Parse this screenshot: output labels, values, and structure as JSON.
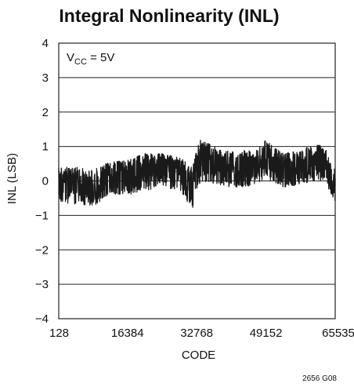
{
  "chart_data": {
    "type": "line",
    "title": "Integral Nonlinearity (INL)",
    "xlabel": "CODE",
    "ylabel": "INL (LSB)",
    "xlim": [
      128,
      65535
    ],
    "ylim": [
      -4,
      4
    ],
    "xticks": [
      "128",
      "16384",
      "32768",
      "49152",
      "65535"
    ],
    "xtick_values": [
      128,
      16384,
      32768,
      49152,
      65535
    ],
    "yticks": [
      "4",
      "3",
      "2",
      "1",
      "0",
      "−1",
      "−2",
      "−3",
      "−4"
    ],
    "ytick_values": [
      4,
      3,
      2,
      1,
      0,
      -1,
      -2,
      -3,
      -4
    ],
    "grid": "horizontal",
    "annotation": {
      "main": "V",
      "sub": "CC",
      "rest": " = 5V"
    },
    "figure_id": "2656 G08",
    "series": [
      {
        "x": [
          128,
          4096,
          8192,
          12288,
          16384,
          20480,
          24576,
          28672,
          31744,
          32768,
          33792,
          36864,
          40960,
          45056,
          48128,
          49152,
          50176,
          53248,
          57344,
          61440,
          63488,
          65535
        ],
        "center": [
          0.0,
          -0.1,
          -0.2,
          0.1,
          0.2,
          0.3,
          0.4,
          0.3,
          -0.1,
          0.3,
          0.7,
          0.5,
          0.3,
          0.4,
          0.5,
          0.8,
          0.6,
          0.2,
          0.5,
          0.6,
          0.5,
          -0.1
        ],
        "low": [
          -0.6,
          -0.7,
          -0.75,
          -0.4,
          -0.4,
          -0.3,
          -0.15,
          -0.3,
          -0.8,
          -0.5,
          0.0,
          -0.1,
          -0.2,
          -0.15,
          0.0,
          0.2,
          0.0,
          -0.2,
          -0.1,
          0.0,
          -0.1,
          -0.65
        ],
        "high": [
          0.4,
          0.4,
          0.35,
          0.55,
          0.6,
          0.8,
          0.8,
          0.7,
          0.4,
          0.9,
          1.3,
          1.0,
          0.85,
          0.9,
          1.0,
          1.3,
          1.1,
          0.8,
          0.9,
          1.1,
          0.9,
          0.4
        ]
      }
    ]
  }
}
